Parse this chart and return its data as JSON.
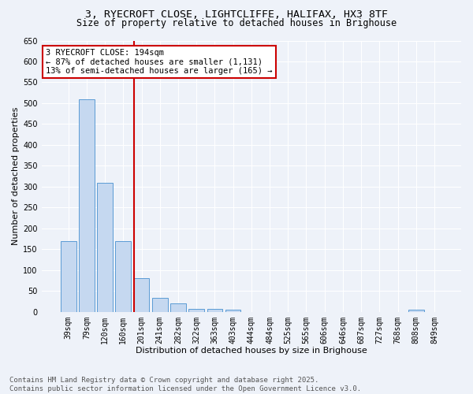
{
  "title_line1": "3, RYECROFT CLOSE, LIGHTCLIFFE, HALIFAX, HX3 8TF",
  "title_line2": "Size of property relative to detached houses in Brighouse",
  "xlabel": "Distribution of detached houses by size in Brighouse",
  "ylabel": "Number of detached properties",
  "categories": [
    "39sqm",
    "79sqm",
    "120sqm",
    "160sqm",
    "201sqm",
    "241sqm",
    "282sqm",
    "322sqm",
    "363sqm",
    "403sqm",
    "444sqm",
    "484sqm",
    "525sqm",
    "565sqm",
    "606sqm",
    "646sqm",
    "687sqm",
    "727sqm",
    "768sqm",
    "808sqm",
    "849sqm"
  ],
  "bar_values": [
    170,
    510,
    310,
    170,
    80,
    33,
    20,
    7,
    7,
    5,
    0,
    0,
    0,
    0,
    0,
    0,
    0,
    0,
    0,
    5,
    0
  ],
  "bar_color": "#c5d8f0",
  "bar_edgecolor": "#5b9bd5",
  "ylim": [
    0,
    650
  ],
  "yticks": [
    0,
    50,
    100,
    150,
    200,
    250,
    300,
    350,
    400,
    450,
    500,
    550,
    600,
    650
  ],
  "red_line_index": 4,
  "annotation_text": "3 RYECROFT CLOSE: 194sqm\n← 87% of detached houses are smaller (1,131)\n13% of semi-detached houses are larger (165) →",
  "annotation_box_color": "#ffffff",
  "annotation_box_edgecolor": "#cc0000",
  "red_line_color": "#cc0000",
  "footer_line1": "Contains HM Land Registry data © Crown copyright and database right 2025.",
  "footer_line2": "Contains public sector information licensed under the Open Government Licence v3.0.",
  "background_color": "#eef2f9",
  "grid_color": "#ffffff",
  "title_fontsize": 9.5,
  "subtitle_fontsize": 8.5,
  "axis_label_fontsize": 8,
  "tick_fontsize": 7,
  "annotation_fontsize": 7.5,
  "footer_fontsize": 6.5
}
